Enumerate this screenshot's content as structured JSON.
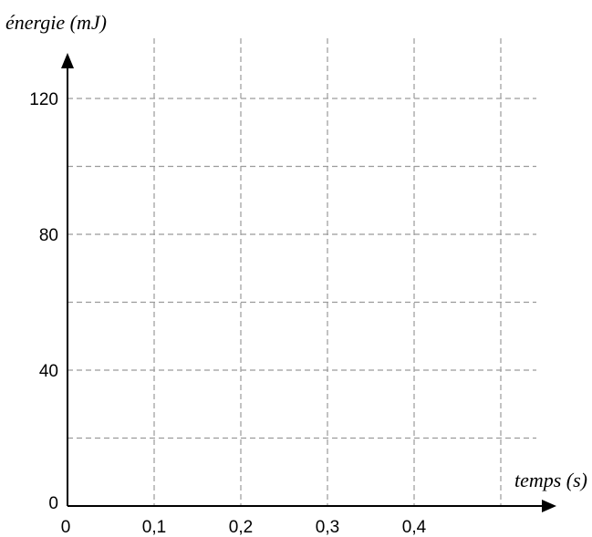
{
  "chart_data": {
    "type": "line",
    "title": "",
    "xlabel": "temps (s)",
    "ylabel": "énergie (mJ)",
    "x_ticks": [
      {
        "value": 0.0,
        "label": "0"
      },
      {
        "value": 0.1,
        "label": "0,1"
      },
      {
        "value": 0.2,
        "label": "0,2"
      },
      {
        "value": 0.3,
        "label": "0,3"
      },
      {
        "value": 0.4,
        "label": "0,4"
      }
    ],
    "y_ticks": [
      {
        "value": 0,
        "label": "0"
      },
      {
        "value": 40,
        "label": "40"
      },
      {
        "value": 80,
        "label": "80"
      },
      {
        "value": 120,
        "label": "120"
      }
    ],
    "x_gridlines": [
      0.1,
      0.2,
      0.3,
      0.4,
      0.5
    ],
    "y_gridlines": [
      20,
      40,
      60,
      80,
      100,
      120
    ],
    "xlim": [
      0,
      0.55
    ],
    "ylim": [
      0,
      130
    ],
    "grid": true,
    "series": []
  }
}
